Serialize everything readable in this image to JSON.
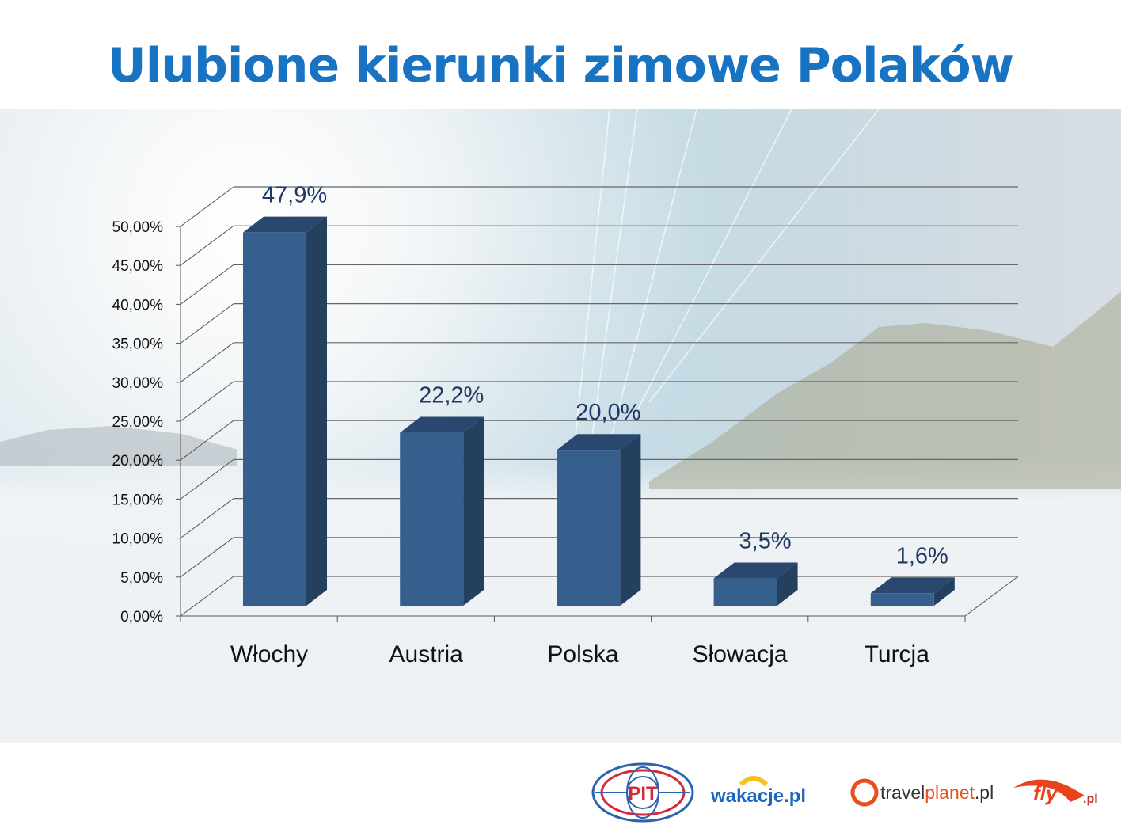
{
  "chart_data": {
    "type": "bar",
    "style": "3d-column",
    "title": "Ulubione kierunki zimowe Polaków",
    "categories": [
      "Włochy",
      "Austria",
      "Polska",
      "Słowacja",
      "Turcja"
    ],
    "values": [
      47.9,
      22.2,
      20.0,
      3.5,
      1.6
    ],
    "data_labels": [
      "47,9%",
      "22,2%",
      "20,0%",
      "3,5%",
      "1,6%"
    ],
    "ylim": [
      0,
      50
    ],
    "yticks": [
      "0,00%",
      "5,00%",
      "10,00%",
      "15,00%",
      "20,00%",
      "25,00%",
      "30,00%",
      "35,00%",
      "40,00%",
      "45,00%",
      "50,00%"
    ],
    "grid": true,
    "legend": "none",
    "colors": {
      "bar_front": "#365f8e",
      "bar_side": "#253f5f",
      "bar_top": "#2a4770",
      "label": "#1f3864",
      "title": "#1874c3"
    }
  },
  "logos": [
    "PIT",
    "wakacje.pl",
    "travelplanet.pl",
    "fly.pl"
  ]
}
